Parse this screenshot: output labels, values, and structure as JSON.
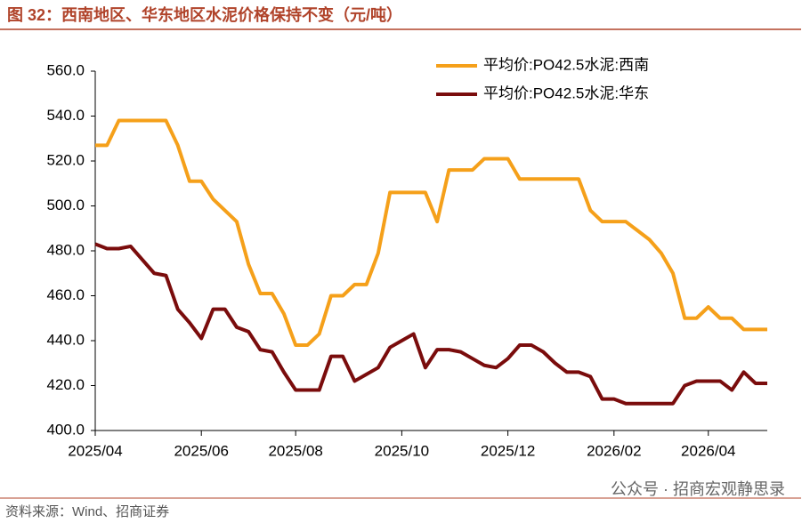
{
  "chart_data": {
    "type": "line",
    "title": "图 32：西南地区、华东地区水泥价格保持不变（元/吨）",
    "source": "资料来源：Wind、招商证券",
    "watermark": "公众号 · 招商宏观静思录",
    "categories": [
      "2025/04",
      null,
      null,
      null,
      null,
      null,
      null,
      null,
      null,
      "2025/06",
      null,
      null,
      null,
      null,
      null,
      null,
      null,
      "2025/08",
      null,
      null,
      null,
      null,
      null,
      null,
      null,
      null,
      "2025/10",
      null,
      null,
      null,
      null,
      null,
      null,
      null,
      null,
      "2025/12",
      null,
      null,
      null,
      null,
      null,
      null,
      null,
      null,
      "2026/02",
      null,
      null,
      null,
      null,
      null,
      null,
      null,
      "2026/04",
      null,
      null,
      null,
      null,
      null
    ],
    "series": [
      {
        "name": "平均价:PO42.5水泥:西南",
        "color": "#f5a01a",
        "values": [
          527,
          527,
          538,
          538,
          538,
          538,
          538,
          527,
          511,
          511,
          503,
          498,
          493,
          474,
          461,
          461,
          452,
          438,
          438,
          443,
          460,
          460,
          465,
          465,
          479,
          506,
          506,
          506,
          506,
          493,
          516,
          516,
          516,
          521,
          521,
          521,
          512,
          512,
          512,
          512,
          512,
          512,
          498,
          493,
          493,
          493,
          489,
          485,
          479,
          470,
          450,
          450,
          455,
          450,
          450,
          445,
          445,
          445
        ]
      },
      {
        "name": "平均价:PO42.5水泥:华东",
        "color": "#7a0c0c",
        "values": [
          483,
          481,
          481,
          482,
          476,
          470,
          469,
          454,
          448,
          441,
          454,
          454,
          446,
          444,
          436,
          435,
          426,
          418,
          418,
          418,
          433,
          433,
          422,
          425,
          428,
          437,
          440,
          443,
          428,
          436,
          436,
          435,
          432,
          429,
          428,
          432,
          438,
          438,
          435,
          430,
          426,
          426,
          424,
          414,
          414,
          412,
          412,
          412,
          412,
          412,
          420,
          422,
          422,
          422,
          418,
          426,
          421,
          421
        ]
      }
    ],
    "ylim": [
      400,
      560
    ],
    "yticks": [
      {
        "value": 400,
        "label": "400.0"
      },
      {
        "value": 420,
        "label": "420.0"
      },
      {
        "value": 440,
        "label": "440.0"
      },
      {
        "value": 460,
        "label": "460.0"
      },
      {
        "value": 480,
        "label": "480.0"
      },
      {
        "value": 500,
        "label": "500.0"
      },
      {
        "value": 520,
        "label": "520.0"
      },
      {
        "value": 540,
        "label": "540.0"
      },
      {
        "value": 560,
        "label": "560.0"
      }
    ],
    "legend": "upper-right"
  }
}
